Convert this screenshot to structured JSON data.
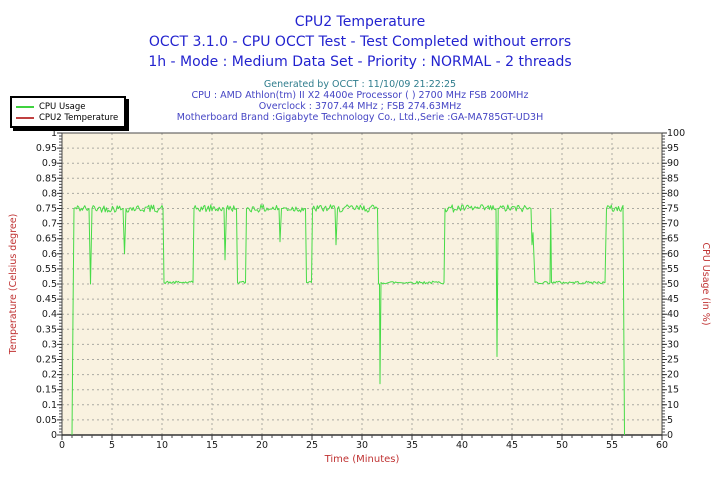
{
  "header": {
    "title": "CPU2 Temperature",
    "subtitle1": "OCCT 3.1.0 - CPU OCCT Test - Test Completed without errors",
    "subtitle2": "1h - Mode : Medium Data Set - Priority : NORMAL - 2 threads",
    "title_color": "#2323cf"
  },
  "info": {
    "line1": "Generated by OCCT : 11/10/09 21:22:25",
    "line2": "CPU : AMD Athlon(tm) II X2 4400e Processor (  ) 2700 MHz FSB 200MHz",
    "line3": "Overclock : 3707.44 MHz ; FSB 274.63MHz",
    "line4": "Motherboard Brand :Gigabyte Technology Co., Ltd.,Serie :GA-MA785GT-UD3H",
    "line1_color": "#2f7d8d",
    "lines_color": "#4545c4"
  },
  "legend": {
    "items": [
      {
        "label": "CPU Usage",
        "color": "#3fd23f"
      },
      {
        "label": "CPU2 Temperature",
        "color": "#c04040"
      }
    ]
  },
  "chart_data": {
    "type": "line",
    "title": "CPU2 Temperature",
    "xlabel": "Time (Minutes)",
    "ylabel_left": "Temperature (Celsius degree)",
    "ylabel_right": "CPU Usage (in %)",
    "xlim": [
      0,
      60
    ],
    "ylim_left": [
      0,
      1
    ],
    "ylim_right": [
      0,
      100
    ],
    "x_tick_labels": [
      "0",
      "5",
      "10",
      "15",
      "20",
      "25",
      "30",
      "35",
      "40",
      "45",
      "50",
      "55",
      "60"
    ],
    "y_left_tick_labels_top_to_bottom": [
      "1",
      "0.95",
      "0.9",
      "0.85",
      "0.8",
      "0.75",
      "0.7",
      "0.65",
      "0.6",
      "0.55",
      "0.5",
      "0.45",
      "0.4",
      "0.35",
      "0.3",
      "0.25",
      "0.2",
      "0.15",
      "0.1",
      "0.05",
      "0"
    ],
    "y_right_tick_labels_top_to_bottom": [
      "100",
      "95",
      "90",
      "85",
      "80",
      "75",
      "70",
      "65",
      "60",
      "55",
      "50",
      "45",
      "40",
      "35",
      "30",
      "25",
      "20",
      "15",
      "10",
      "5",
      "0"
    ],
    "grid": true,
    "plot_bg": "#f9f2e0",
    "grid_color": "#aaaaa2",
    "frame_color": "#4a4a4a",
    "axis_title_color": "#c03333",
    "tick_label_color": "#1a1a1a",
    "series": [
      {
        "name": "CPU Usage",
        "axis": "right",
        "units": "%",
        "color": "#47db47",
        "points": [
          [
            1.0,
            0
          ],
          [
            1.1,
            40
          ],
          [
            1.2,
            75
          ],
          [
            2.7,
            75
          ],
          [
            2.85,
            50
          ],
          [
            3.0,
            75
          ],
          [
            6.1,
            75
          ],
          [
            6.25,
            60
          ],
          [
            6.4,
            75
          ],
          [
            10.1,
            75
          ],
          [
            10.2,
            50.5
          ],
          [
            13.1,
            50.5
          ],
          [
            13.2,
            75
          ],
          [
            16.2,
            75
          ],
          [
            16.3,
            58
          ],
          [
            16.45,
            75
          ],
          [
            17.45,
            75
          ],
          [
            17.55,
            50.5
          ],
          [
            18.35,
            50.5
          ],
          [
            18.45,
            75
          ],
          [
            21.7,
            75
          ],
          [
            21.8,
            64
          ],
          [
            21.95,
            75
          ],
          [
            24.35,
            75
          ],
          [
            24.45,
            50.5
          ],
          [
            24.95,
            50.5
          ],
          [
            25.05,
            75
          ],
          [
            27.3,
            75
          ],
          [
            27.4,
            63
          ],
          [
            27.55,
            75
          ],
          [
            31.55,
            75
          ],
          [
            31.65,
            50
          ],
          [
            31.75,
            50
          ],
          [
            31.8,
            17
          ],
          [
            31.9,
            50.5
          ],
          [
            38.2,
            50.5
          ],
          [
            38.3,
            75
          ],
          [
            43.4,
            75
          ],
          [
            43.5,
            26
          ],
          [
            43.62,
            75
          ],
          [
            46.9,
            75
          ],
          [
            47.0,
            63
          ],
          [
            47.1,
            67
          ],
          [
            47.3,
            50.5
          ],
          [
            48.8,
            50.5
          ],
          [
            48.87,
            75
          ],
          [
            48.95,
            50.5
          ],
          [
            54.3,
            50.5
          ],
          [
            54.45,
            75
          ],
          [
            56.1,
            76
          ],
          [
            56.25,
            0
          ]
        ]
      },
      {
        "name": "CPU2 Temperature",
        "axis": "left",
        "units": "Celsius degree",
        "color": "#c04040",
        "points": [],
        "note": "no visible trace on plot (flat at 0 / hidden under axis)"
      }
    ]
  }
}
